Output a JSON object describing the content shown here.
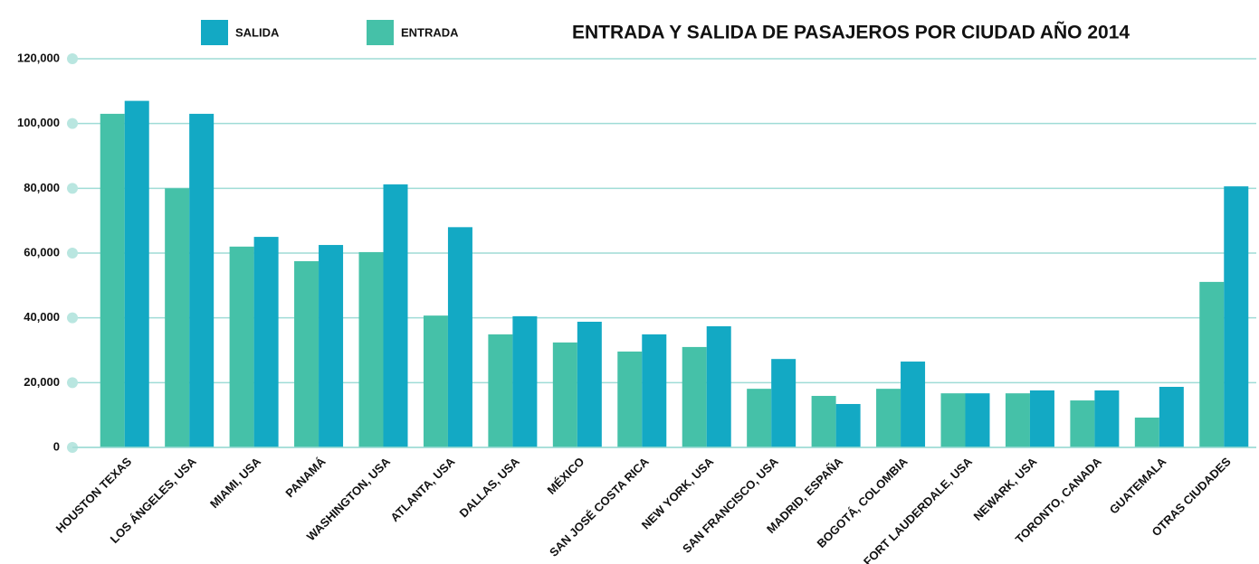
{
  "chart_data": {
    "type": "bar",
    "title": "ENTRADA Y SALIDA DE PASAJEROS POR CIUDAD AÑO 2014",
    "categories": [
      "HOUSTON TEXAS",
      "LOS ÁNGELES, USA",
      "MIAMI, USA",
      "PANAMÁ",
      "WASHINGTON, USA",
      "ATLANTA, USA",
      "DALLAS, USA",
      "MÉXICO",
      "SAN JOSÉ COSTA RICA",
      "NEW YORK, USA",
      "SAN FRANCISCO, USA",
      "MADRID, ESPAÑA",
      "BOGOTÁ, COLOMBIA",
      "FORT LAUDERDALE, USA",
      "NEWARK, USA",
      "TORONTO, CANADA",
      "GUATEMALA",
      "OTRAS CIUDADES"
    ],
    "series": [
      {
        "name": "SALIDA",
        "color": "#13a9c4",
        "values": [
          107000,
          103000,
          65000,
          62500,
          81200,
          68000,
          40500,
          38800,
          34900,
          37400,
          27300,
          13400,
          26500,
          16700,
          17600,
          17600,
          18700,
          80600
        ]
      },
      {
        "name": "ENTRADA",
        "color": "#45c1a8",
        "values": [
          103000,
          80000,
          62000,
          57500,
          60300,
          40700,
          34900,
          32400,
          29600,
          31000,
          18100,
          15900,
          18100,
          16700,
          16700,
          14500,
          9200,
          51100
        ]
      }
    ],
    "ylim": [
      0,
      120000
    ],
    "yticks": [
      0,
      {
        "value": 20000,
        "label": "20,000"
      },
      {
        "value": 40000,
        "label": "40,000"
      },
      {
        "value": 60000,
        "label": "60,000"
      },
      {
        "value": 80000,
        "label": "80,000"
      },
      {
        "value": 100000,
        "label": "100,000"
      },
      {
        "value": 120000,
        "label": "120,000"
      }
    ],
    "grid": true
  }
}
